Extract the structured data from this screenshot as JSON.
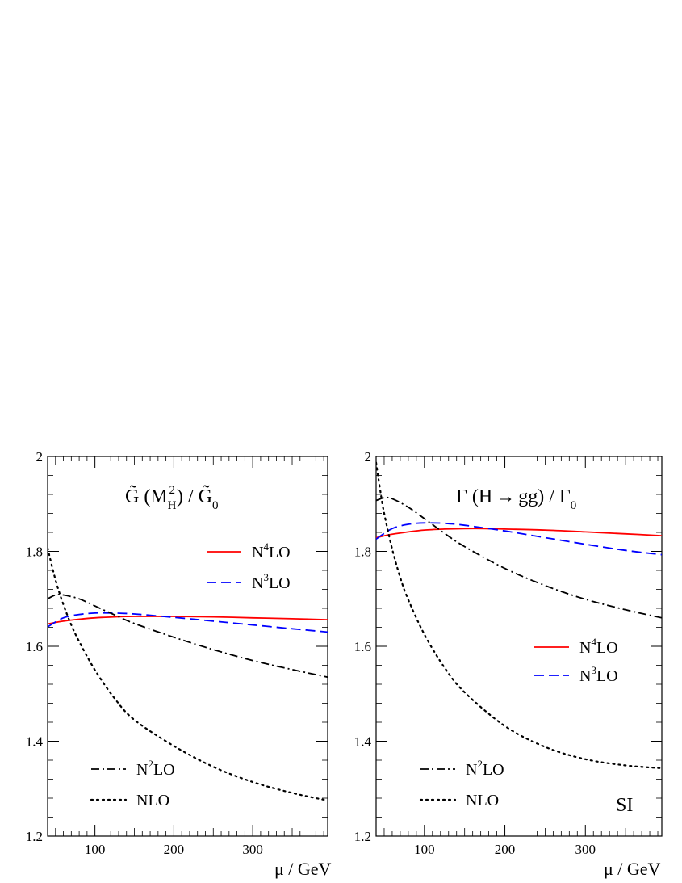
{
  "chart_data": [
    {
      "type": "line",
      "title": "G̃ (M_H²) / G̃₀",
      "title_parts": {
        "main": "G̃ (M",
        "sub": "H",
        "sup": "2",
        "mid": ") / G̃",
        "den_sub": "0"
      },
      "xlabel": "μ / GeV",
      "ylabel": "",
      "xlim": [
        40,
        395
      ],
      "ylim": [
        1.2,
        2.0
      ],
      "xticks": [
        100,
        200,
        300
      ],
      "yticks": [
        1.2,
        1.4,
        1.6,
        1.8,
        2.0
      ],
      "ytick_labels": [
        "1.2",
        "1.4",
        "1.6",
        "1.8",
        "2"
      ],
      "grid": false,
      "legend": [
        {
          "series": "N4LO",
          "base": "N",
          "sup": "4",
          "rest": "LO",
          "placement": "upper-right"
        },
        {
          "series": "N3LO",
          "base": "N",
          "sup": "3",
          "rest": "LO",
          "placement": "upper-right"
        },
        {
          "series": "N2LO",
          "base": "N",
          "sup": "2",
          "rest": "LO",
          "placement": "lower-left"
        },
        {
          "series": "NLO",
          "base": "NLO",
          "sup": "",
          "rest": "",
          "placement": "lower-left"
        }
      ],
      "series": [
        {
          "name": "N4LO",
          "color": "#ff0000",
          "dash": "solid",
          "x": [
            40,
            60,
            80,
            100,
            125,
            150,
            200,
            250,
            300,
            350,
            395
          ],
          "y": [
            1.647,
            1.653,
            1.657,
            1.66,
            1.662,
            1.663,
            1.663,
            1.662,
            1.66,
            1.658,
            1.656
          ]
        },
        {
          "name": "N3LO",
          "color": "#0000ff",
          "dash": "dashed",
          "x": [
            40,
            60,
            80,
            100,
            125,
            150,
            200,
            250,
            300,
            350,
            395
          ],
          "y": [
            1.641,
            1.66,
            1.667,
            1.67,
            1.67,
            1.668,
            1.661,
            1.653,
            1.645,
            1.637,
            1.63
          ]
        },
        {
          "name": "N2LO",
          "color": "#000000",
          "dash": "dashdot",
          "x": [
            40,
            50,
            60,
            80,
            100,
            125,
            150,
            200,
            250,
            300,
            350,
            395
          ],
          "y": [
            1.7,
            1.708,
            1.708,
            1.7,
            1.685,
            1.666,
            1.648,
            1.619,
            1.593,
            1.57,
            1.551,
            1.535
          ]
        },
        {
          "name": "NLO",
          "color": "#000000",
          "dash": "dotted",
          "x": [
            40,
            50,
            60,
            70,
            80,
            100,
            125,
            150,
            200,
            250,
            300,
            350,
            395
          ],
          "y": [
            1.807,
            1.74,
            1.688,
            1.645,
            1.61,
            1.55,
            1.49,
            1.445,
            1.39,
            1.346,
            1.314,
            1.291,
            1.275
          ]
        }
      ]
    },
    {
      "type": "line",
      "title": "Γ (H → gg) / Γ₀",
      "title_parts": {
        "main": "Γ (H",
        "arrow": "→",
        "after": "gg) / Γ",
        "den_sub": "0"
      },
      "xlabel": "μ / GeV",
      "ylabel": "",
      "xlim": [
        40,
        395
      ],
      "ylim": [
        1.2,
        2.0
      ],
      "xticks": [
        100,
        200,
        300
      ],
      "yticks": [
        1.2,
        1.4,
        1.6,
        1.8,
        2.0
      ],
      "ytick_labels": [
        "1.2",
        "1.4",
        "1.6",
        "1.8",
        "2"
      ],
      "grid": false,
      "annotation": "SI",
      "legend": [
        {
          "series": "N4LO",
          "base": "N",
          "sup": "4",
          "rest": "LO",
          "placement": "center-right"
        },
        {
          "series": "N3LO",
          "base": "N",
          "sup": "3",
          "rest": "LO",
          "placement": "center-right"
        },
        {
          "series": "N2LO",
          "base": "N",
          "sup": "2",
          "rest": "LO",
          "placement": "lower-left"
        },
        {
          "series": "NLO",
          "base": "NLO",
          "sup": "",
          "rest": "",
          "placement": "lower-left"
        }
      ],
      "series": [
        {
          "name": "N4LO",
          "color": "#ff0000",
          "dash": "solid",
          "x": [
            40,
            60,
            80,
            100,
            125,
            150,
            175,
            200,
            250,
            300,
            350,
            395
          ],
          "y": [
            1.829,
            1.836,
            1.841,
            1.845,
            1.847,
            1.848,
            1.848,
            1.847,
            1.845,
            1.841,
            1.837,
            1.833
          ]
        },
        {
          "name": "N3LO",
          "color": "#0000ff",
          "dash": "dashed",
          "x": [
            40,
            60,
            80,
            100,
            125,
            150,
            200,
            250,
            300,
            350,
            395
          ],
          "y": [
            1.826,
            1.848,
            1.857,
            1.86,
            1.859,
            1.855,
            1.843,
            1.829,
            1.815,
            1.802,
            1.793
          ]
        },
        {
          "name": "N2LO",
          "color": "#000000",
          "dash": "dashdot",
          "x": [
            40,
            50,
            60,
            80,
            100,
            125,
            150,
            200,
            250,
            300,
            350,
            395
          ],
          "y": [
            1.907,
            1.913,
            1.911,
            1.893,
            1.869,
            1.838,
            1.81,
            1.764,
            1.728,
            1.699,
            1.677,
            1.66
          ]
        },
        {
          "name": "NLO",
          "color": "#000000",
          "dash": "dotted",
          "x": [
            40,
            45,
            50,
            60,
            70,
            80,
            100,
            125,
            150,
            200,
            250,
            300,
            350,
            395
          ],
          "y": [
            1.987,
            1.93,
            1.88,
            1.805,
            1.745,
            1.698,
            1.625,
            1.555,
            1.503,
            1.432,
            1.388,
            1.362,
            1.349,
            1.343
          ]
        }
      ]
    }
  ]
}
